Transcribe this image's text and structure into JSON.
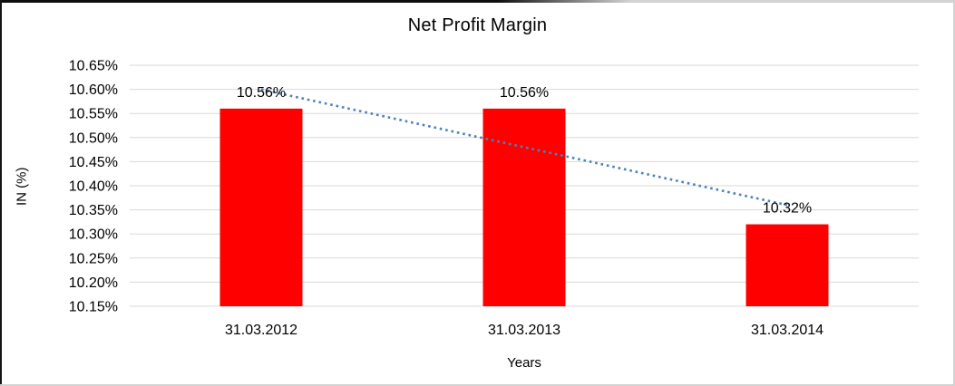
{
  "chart_data": {
    "type": "bar",
    "title": "Net Profit Margin",
    "xlabel": "Years",
    "ylabel": "IN (%)",
    "categories": [
      "31.03.2012",
      "31.03.2013",
      "31.03.2014"
    ],
    "values": [
      10.56,
      10.56,
      10.32
    ],
    "data_labels": [
      "10.56%",
      "10.56%",
      "10.32%"
    ],
    "ylim": [
      10.15,
      10.65
    ],
    "ytick_step": 0.05,
    "ytick_labels": [
      "10.65%",
      "10.60%",
      "10.55%",
      "10.50%",
      "10.45%",
      "10.40%",
      "10.35%",
      "10.30%",
      "10.25%",
      "10.20%",
      "10.15%"
    ],
    "grid": true,
    "legend": false,
    "colors": {
      "bar": "#FF0000",
      "gridline": "#D9D9D9",
      "trendline": "#4E81BD",
      "text": "#000000"
    },
    "trendline": {
      "type": "linear",
      "style": "dotted",
      "start_value": 10.6,
      "end_value": 10.36
    }
  }
}
